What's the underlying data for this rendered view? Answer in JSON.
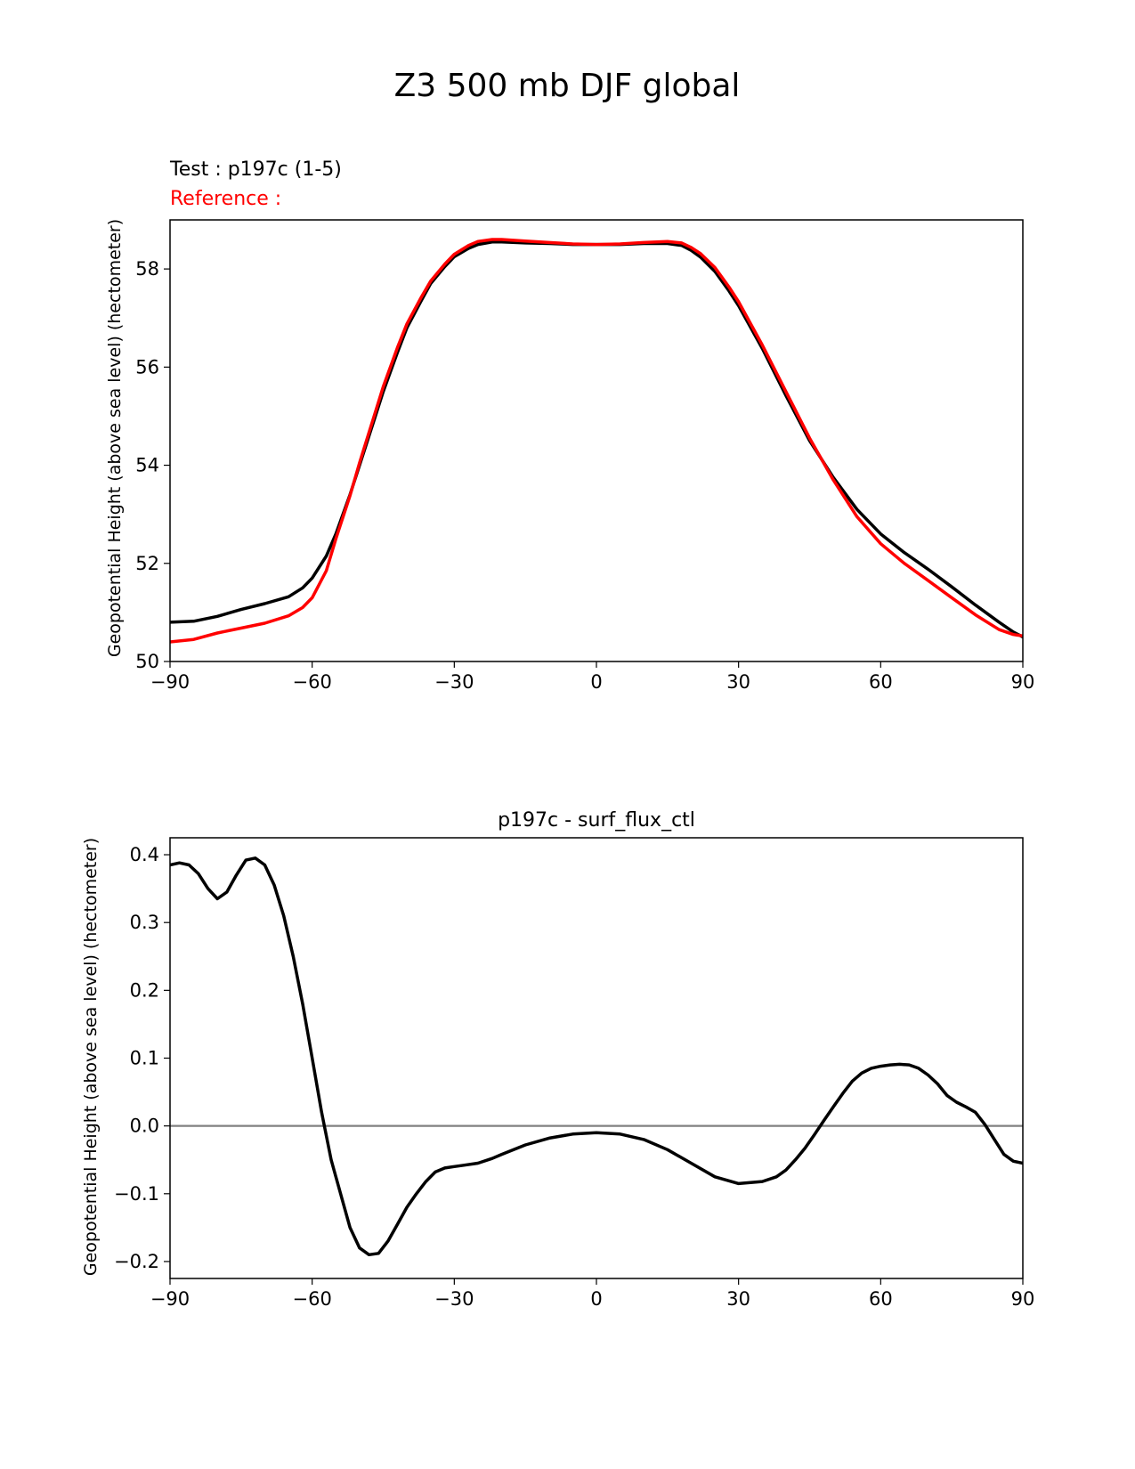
{
  "figure_title": "Z3 500 mb DJF global",
  "chart_data": [
    {
      "type": "line",
      "test_label": "Test : p197c (1-5)",
      "reference_label": "Reference :",
      "ylabel": "Geopotential Height (above sea level) (hectometer)",
      "xlabel": "",
      "xlim": [
        -90,
        90
      ],
      "ylim": [
        50,
        59
      ],
      "xticks": [
        -90,
        -60,
        -30,
        0,
        30,
        60,
        90
      ],
      "xtick_labels": [
        "−90",
        "−60",
        "−30",
        "0",
        "30",
        "60",
        "90"
      ],
      "yticks": [
        50,
        52,
        54,
        56,
        58
      ],
      "ytick_labels": [
        "50",
        "52",
        "54",
        "56",
        "58"
      ],
      "x": [
        -90,
        -85,
        -80,
        -75,
        -70,
        -65,
        -62,
        -60,
        -57,
        -55,
        -52,
        -50,
        -47,
        -45,
        -42,
        -40,
        -37,
        -35,
        -32,
        -30,
        -27,
        -25,
        -22,
        -20,
        -15,
        -10,
        -5,
        0,
        5,
        10,
        15,
        18,
        20,
        22,
        25,
        28,
        30,
        35,
        40,
        45,
        50,
        55,
        60,
        65,
        70,
        75,
        80,
        85,
        88,
        90
      ],
      "series": [
        {
          "name": "Test",
          "color": "#000000",
          "values": [
            50.8,
            50.82,
            50.92,
            51.06,
            51.18,
            51.32,
            51.5,
            51.7,
            52.15,
            52.6,
            53.4,
            54.0,
            54.9,
            55.5,
            56.3,
            56.8,
            57.35,
            57.7,
            58.05,
            58.25,
            58.42,
            58.5,
            58.55,
            58.55,
            58.53,
            58.52,
            58.5,
            58.5,
            58.5,
            58.52,
            58.52,
            58.48,
            58.38,
            58.24,
            57.95,
            57.55,
            57.25,
            56.38,
            55.42,
            54.5,
            53.75,
            53.1,
            52.6,
            52.22,
            51.88,
            51.52,
            51.15,
            50.8,
            50.6,
            50.5
          ]
        },
        {
          "name": "Reference",
          "color": "#ff0000",
          "values": [
            50.4,
            50.45,
            50.58,
            50.68,
            50.78,
            50.93,
            51.1,
            51.3,
            51.85,
            52.5,
            53.38,
            54.05,
            54.98,
            55.6,
            56.4,
            56.88,
            57.42,
            57.75,
            58.1,
            58.3,
            58.48,
            58.56,
            58.6,
            58.6,
            58.57,
            58.54,
            58.51,
            58.5,
            58.51,
            58.54,
            58.56,
            58.53,
            58.44,
            58.31,
            58.03,
            57.63,
            57.33,
            56.45,
            55.5,
            54.55,
            53.7,
            52.95,
            52.4,
            52.0,
            51.65,
            51.3,
            50.95,
            50.65,
            50.55,
            50.52
          ]
        }
      ]
    },
    {
      "type": "line",
      "title": "p197c - surf_flux_ctl",
      "ylabel": "Geopotential Height (above sea level) (hectometer)",
      "xlabel": "",
      "xlim": [
        -90,
        90
      ],
      "ylim": [
        -0.225,
        0.425
      ],
      "xticks": [
        -90,
        -60,
        -30,
        0,
        30,
        60,
        90
      ],
      "xtick_labels": [
        "−90",
        "−60",
        "−30",
        "0",
        "30",
        "60",
        "90"
      ],
      "yticks": [
        -0.2,
        -0.1,
        0.0,
        0.1,
        0.2,
        0.3,
        0.4
      ],
      "ytick_labels": [
        "−0.2",
        "−0.1",
        "0.0",
        "0.1",
        "0.2",
        "0.3",
        "0.4"
      ],
      "zero_line_color": "#808080",
      "x": [
        -90,
        -88,
        -86,
        -84,
        -82,
        -80,
        -78,
        -76,
        -74,
        -72,
        -70,
        -68,
        -66,
        -64,
        -62,
        -60,
        -58,
        -56,
        -55,
        -54,
        -52,
        -50,
        -48,
        -46,
        -44,
        -42,
        -40,
        -38,
        -36,
        -34,
        -32,
        -30,
        -28,
        -25,
        -22,
        -20,
        -15,
        -10,
        -5,
        0,
        5,
        10,
        15,
        20,
        25,
        30,
        35,
        38,
        40,
        42,
        44,
        46,
        48,
        50,
        52,
        54,
        56,
        58,
        60,
        62,
        64,
        66,
        68,
        70,
        72,
        74,
        76,
        78,
        80,
        82,
        84,
        86,
        88,
        90
      ],
      "series": [
        {
          "name": "p197c - surf_flux_ctl",
          "color": "#000000",
          "values": [
            0.385,
            0.388,
            0.385,
            0.372,
            0.35,
            0.335,
            0.345,
            0.37,
            0.392,
            0.395,
            0.385,
            0.355,
            0.31,
            0.25,
            0.18,
            0.1,
            0.02,
            -0.05,
            -0.075,
            -0.1,
            -0.15,
            -0.18,
            -0.19,
            -0.188,
            -0.17,
            -0.145,
            -0.12,
            -0.1,
            -0.082,
            -0.068,
            -0.062,
            -0.06,
            -0.058,
            -0.055,
            -0.048,
            -0.042,
            -0.028,
            -0.018,
            -0.012,
            -0.01,
            -0.012,
            -0.02,
            -0.035,
            -0.055,
            -0.075,
            -0.085,
            -0.082,
            -0.075,
            -0.065,
            -0.05,
            -0.033,
            -0.013,
            0.008,
            0.028,
            0.048,
            0.066,
            0.078,
            0.085,
            0.088,
            0.09,
            0.091,
            0.09,
            0.085,
            0.075,
            0.062,
            0.045,
            0.035,
            0.028,
            0.02,
            0.002,
            -0.02,
            -0.042,
            -0.052,
            -0.055
          ]
        }
      ]
    }
  ]
}
